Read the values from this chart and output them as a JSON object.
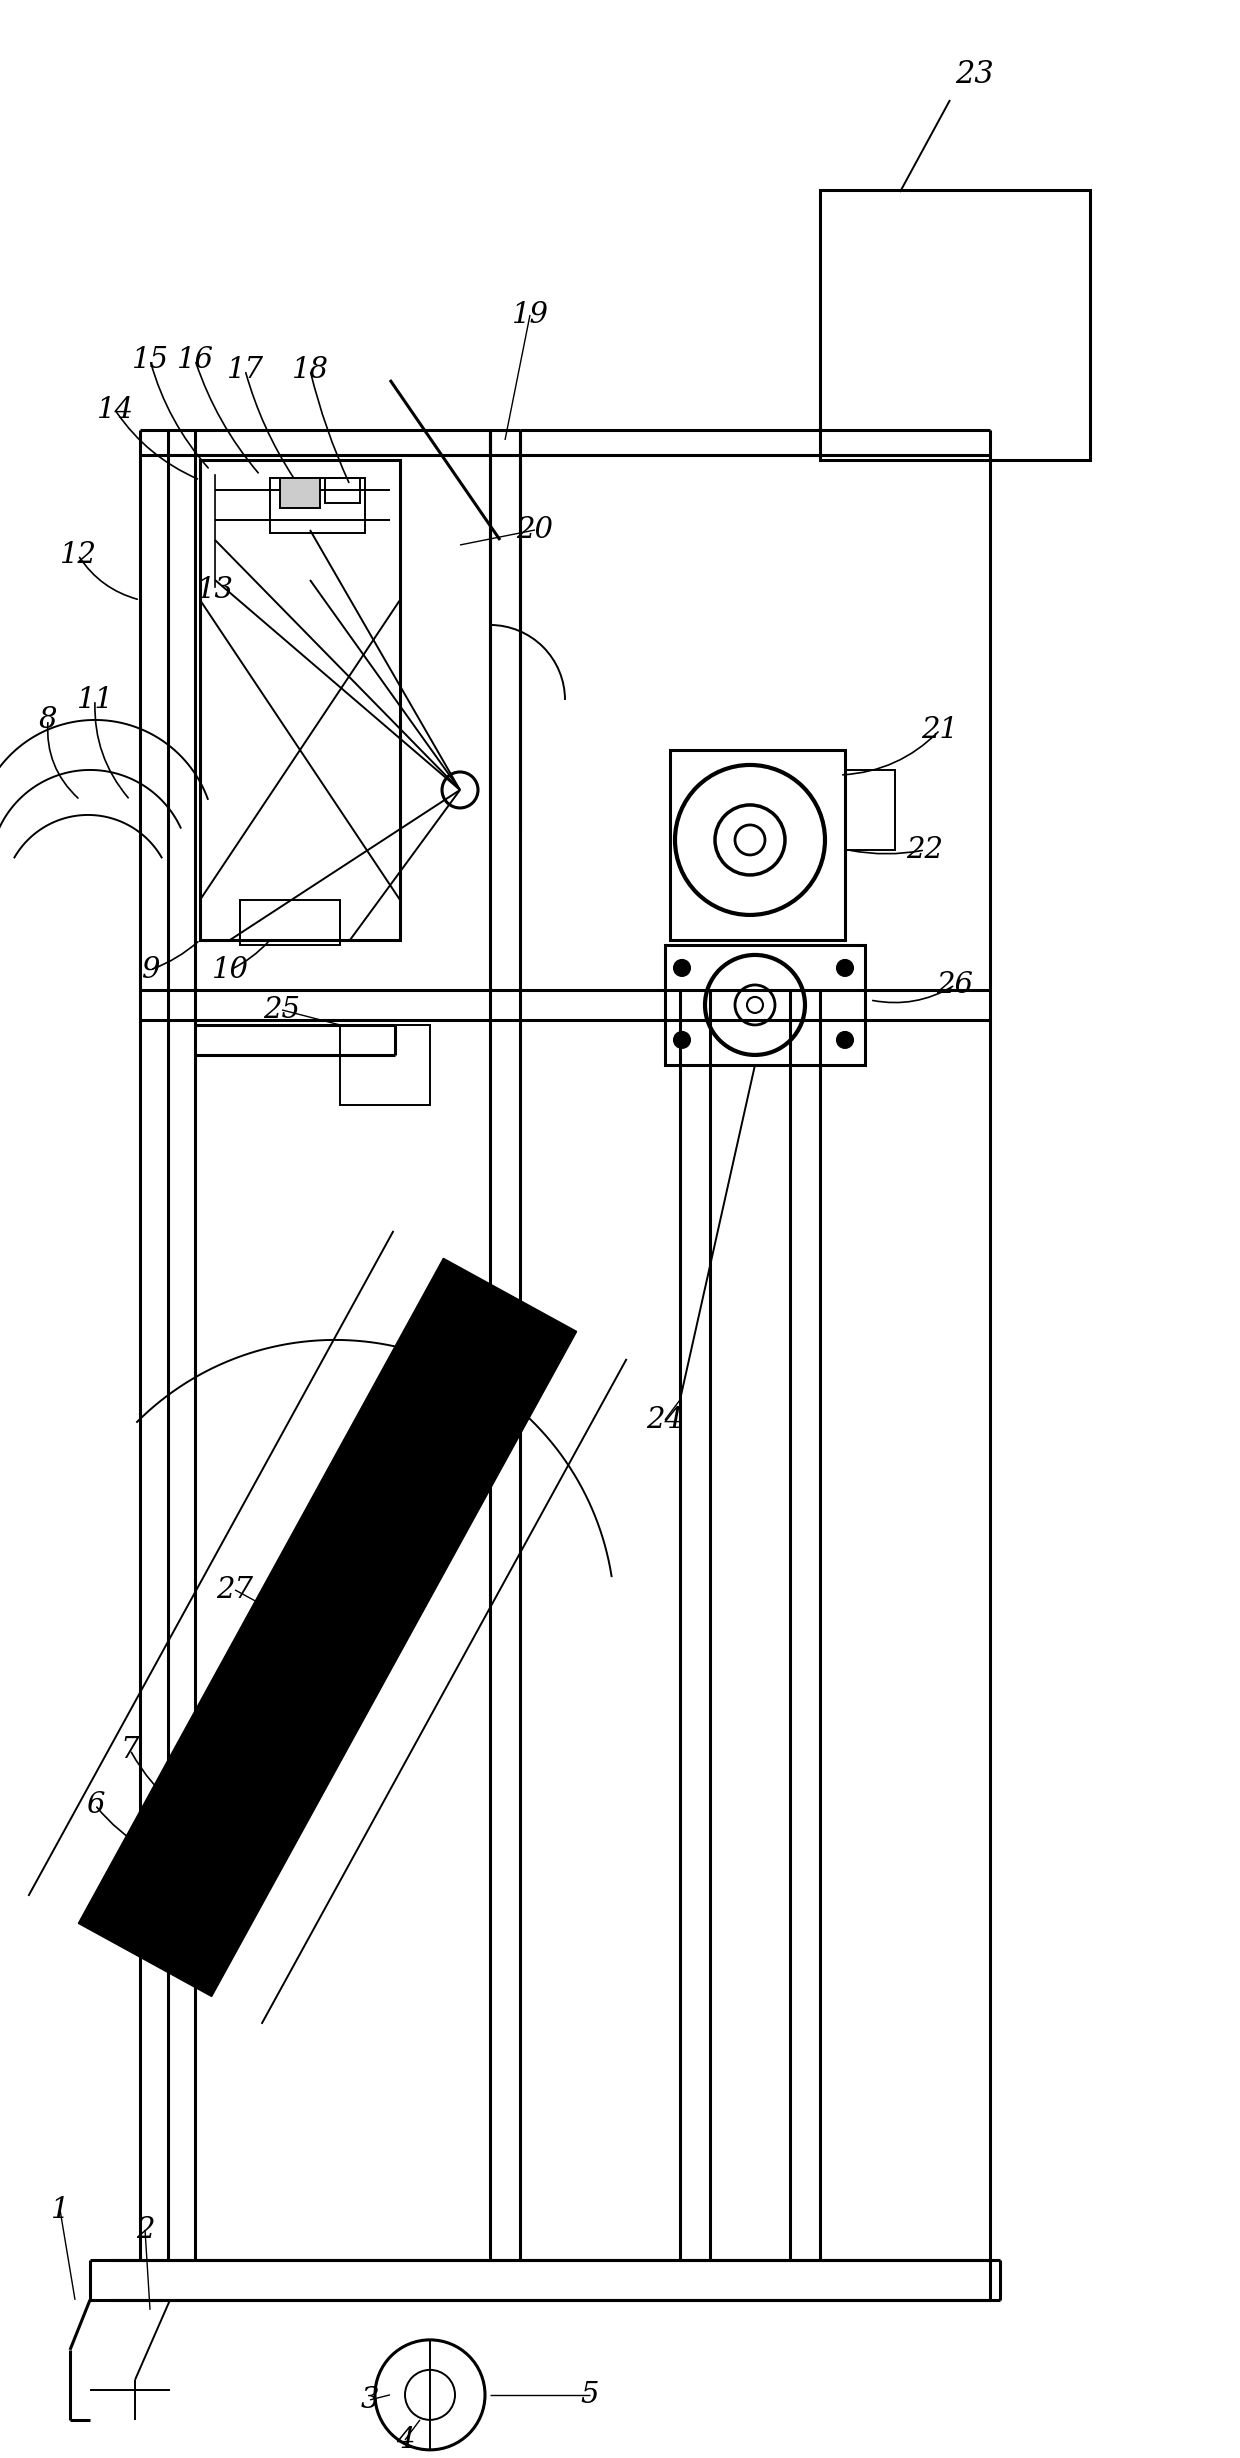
{
  "bg_color": "#ffffff",
  "line_color": "#000000",
  "figsize": [
    12.4,
    24.58
  ],
  "dpi": 100,
  "lw_main": 2.2,
  "lw_thin": 1.4,
  "lw_thick": 3.5
}
